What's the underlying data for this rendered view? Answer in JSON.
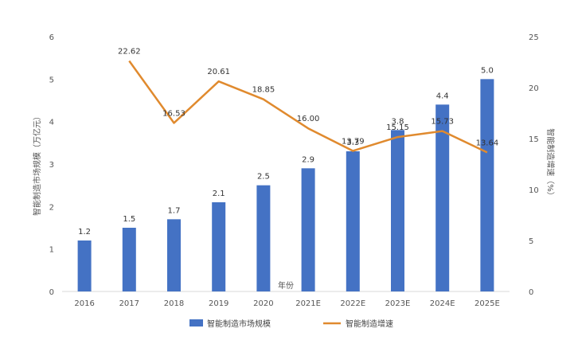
{
  "chart_data": {
    "type": "bar",
    "categories": [
      "2016",
      "2017",
      "2018",
      "2019",
      "2020",
      "2021E",
      "2022E",
      "2023E",
      "2024E",
      "2025E"
    ],
    "series": [
      {
        "name": "智能制造市场规模",
        "type": "bar",
        "axis": "left",
        "color": "#4472c4",
        "values": [
          1.2,
          1.5,
          1.7,
          2.1,
          2.5,
          2.9,
          3.3,
          3.8,
          4.4,
          5.0
        ],
        "labels": [
          "1.2",
          "1.5",
          "1.7",
          "2.1",
          "2.5",
          "2.9",
          "3.3",
          "3.8",
          "4.4",
          "5.0"
        ]
      },
      {
        "name": "智能制造增速",
        "type": "line",
        "axis": "right",
        "color": "#e08a2e",
        "values": [
          null,
          22.62,
          16.53,
          20.61,
          18.85,
          16.0,
          13.79,
          15.15,
          15.73,
          13.64
        ],
        "labels": [
          "",
          "22.62",
          "16.53",
          "20.61",
          "18.85",
          "16.00",
          "13.79",
          "15.15",
          "15.73",
          "13.64"
        ]
      }
    ],
    "ylabel": "智能制造市场规模（万亿元）",
    "y2label": "智能制造增速（%）",
    "xlabel": "年份",
    "ylim": [
      0,
      6
    ],
    "yticks": [
      "0",
      "1",
      "2",
      "3",
      "4",
      "5",
      "6"
    ],
    "y2lim": [
      0,
      25
    ],
    "y2ticks": [
      "0",
      "5",
      "10",
      "15",
      "20",
      "25"
    ],
    "grid": false,
    "legend_position": "bottom"
  }
}
